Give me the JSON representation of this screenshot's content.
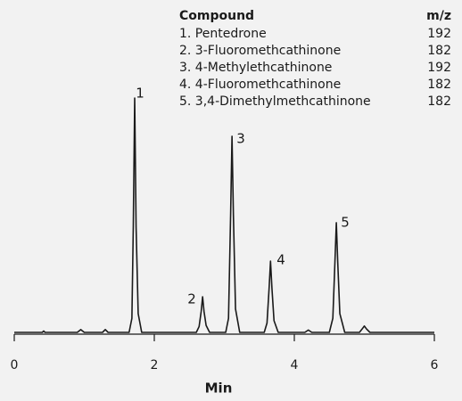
{
  "chart_data": {
    "type": "line",
    "x_label": "Min",
    "xlim": [
      0,
      6
    ],
    "xticks": [
      0,
      2,
      4,
      6
    ],
    "ylim": [
      0,
      100
    ],
    "series": [
      {
        "color": "#1a1a1a",
        "x": [
          0,
          0.4,
          0.42,
          0.44,
          0.9,
          0.95,
          1.0,
          1.26,
          1.3,
          1.34,
          1.64,
          1.68,
          1.7,
          1.72,
          1.74,
          1.77,
          1.82,
          2.6,
          2.64,
          2.67,
          2.69,
          2.71,
          2.74,
          2.79,
          3.02,
          3.06,
          3.09,
          3.11,
          3.13,
          3.16,
          3.22,
          3.57,
          3.61,
          3.64,
          3.66,
          3.68,
          3.71,
          3.77,
          4.15,
          4.2,
          4.25,
          4.5,
          4.55,
          4.58,
          4.6,
          4.62,
          4.65,
          4.72,
          4.93,
          4.97,
          5.0,
          5.03,
          5.08,
          6.0
        ],
        "values": [
          0,
          0,
          0.6,
          0,
          0,
          1.2,
          0,
          0,
          1.2,
          0,
          0,
          6,
          45,
          100,
          45,
          8,
          0,
          0,
          2.5,
          9,
          15.2,
          9,
          3,
          0,
          0,
          6,
          50,
          83.7,
          50,
          10,
          0,
          0,
          4,
          19,
          30.4,
          19,
          5,
          0,
          0,
          1,
          0,
          0,
          6,
          30,
          46.8,
          30,
          8,
          0,
          0,
          1.5,
          2.7,
          1.5,
          0,
          0
        ]
      }
    ],
    "peak_labels": [
      "1",
      "2",
      "3",
      "4",
      "5"
    ],
    "legend_table": {
      "columns": [
        "Compound",
        "m/z"
      ],
      "rows": [
        [
          "1. Pentedrone",
          "192"
        ],
        [
          "2. 3-Fluoromethcathinone",
          "182"
        ],
        [
          "3. 4-Methylethcathinone",
          "192"
        ],
        [
          "4. 4-Fluoromethcathinone",
          "182"
        ],
        [
          "5. 3,4-Dimethylmethcathinone",
          "182"
        ]
      ]
    }
  }
}
